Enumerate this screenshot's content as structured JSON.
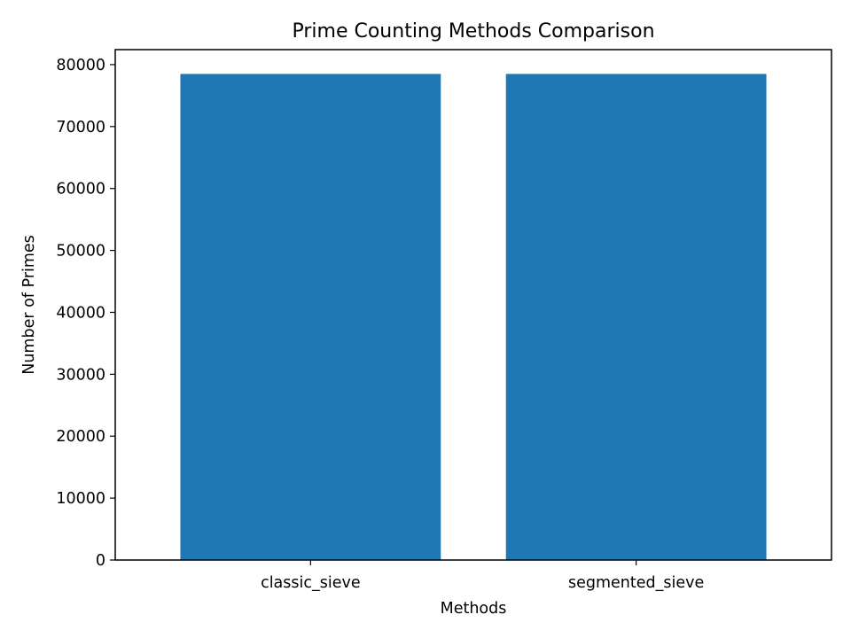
{
  "chart_data": {
    "type": "bar",
    "title": "Prime Counting Methods Comparison",
    "xlabel": "Methods",
    "ylabel": "Number of Primes",
    "categories": [
      "classic_sieve",
      "segmented_sieve"
    ],
    "values": [
      78498,
      78498
    ],
    "ylim": [
      0,
      82424
    ],
    "yticks": [
      0,
      10000,
      20000,
      30000,
      40000,
      50000,
      60000,
      70000,
      80000
    ],
    "ytick_labels": [
      "0",
      "10000",
      "20000",
      "30000",
      "40000",
      "50000",
      "60000",
      "70000",
      "80000"
    ],
    "bar_color": "#1f77b4",
    "grid": false,
    "legend": "none"
  }
}
